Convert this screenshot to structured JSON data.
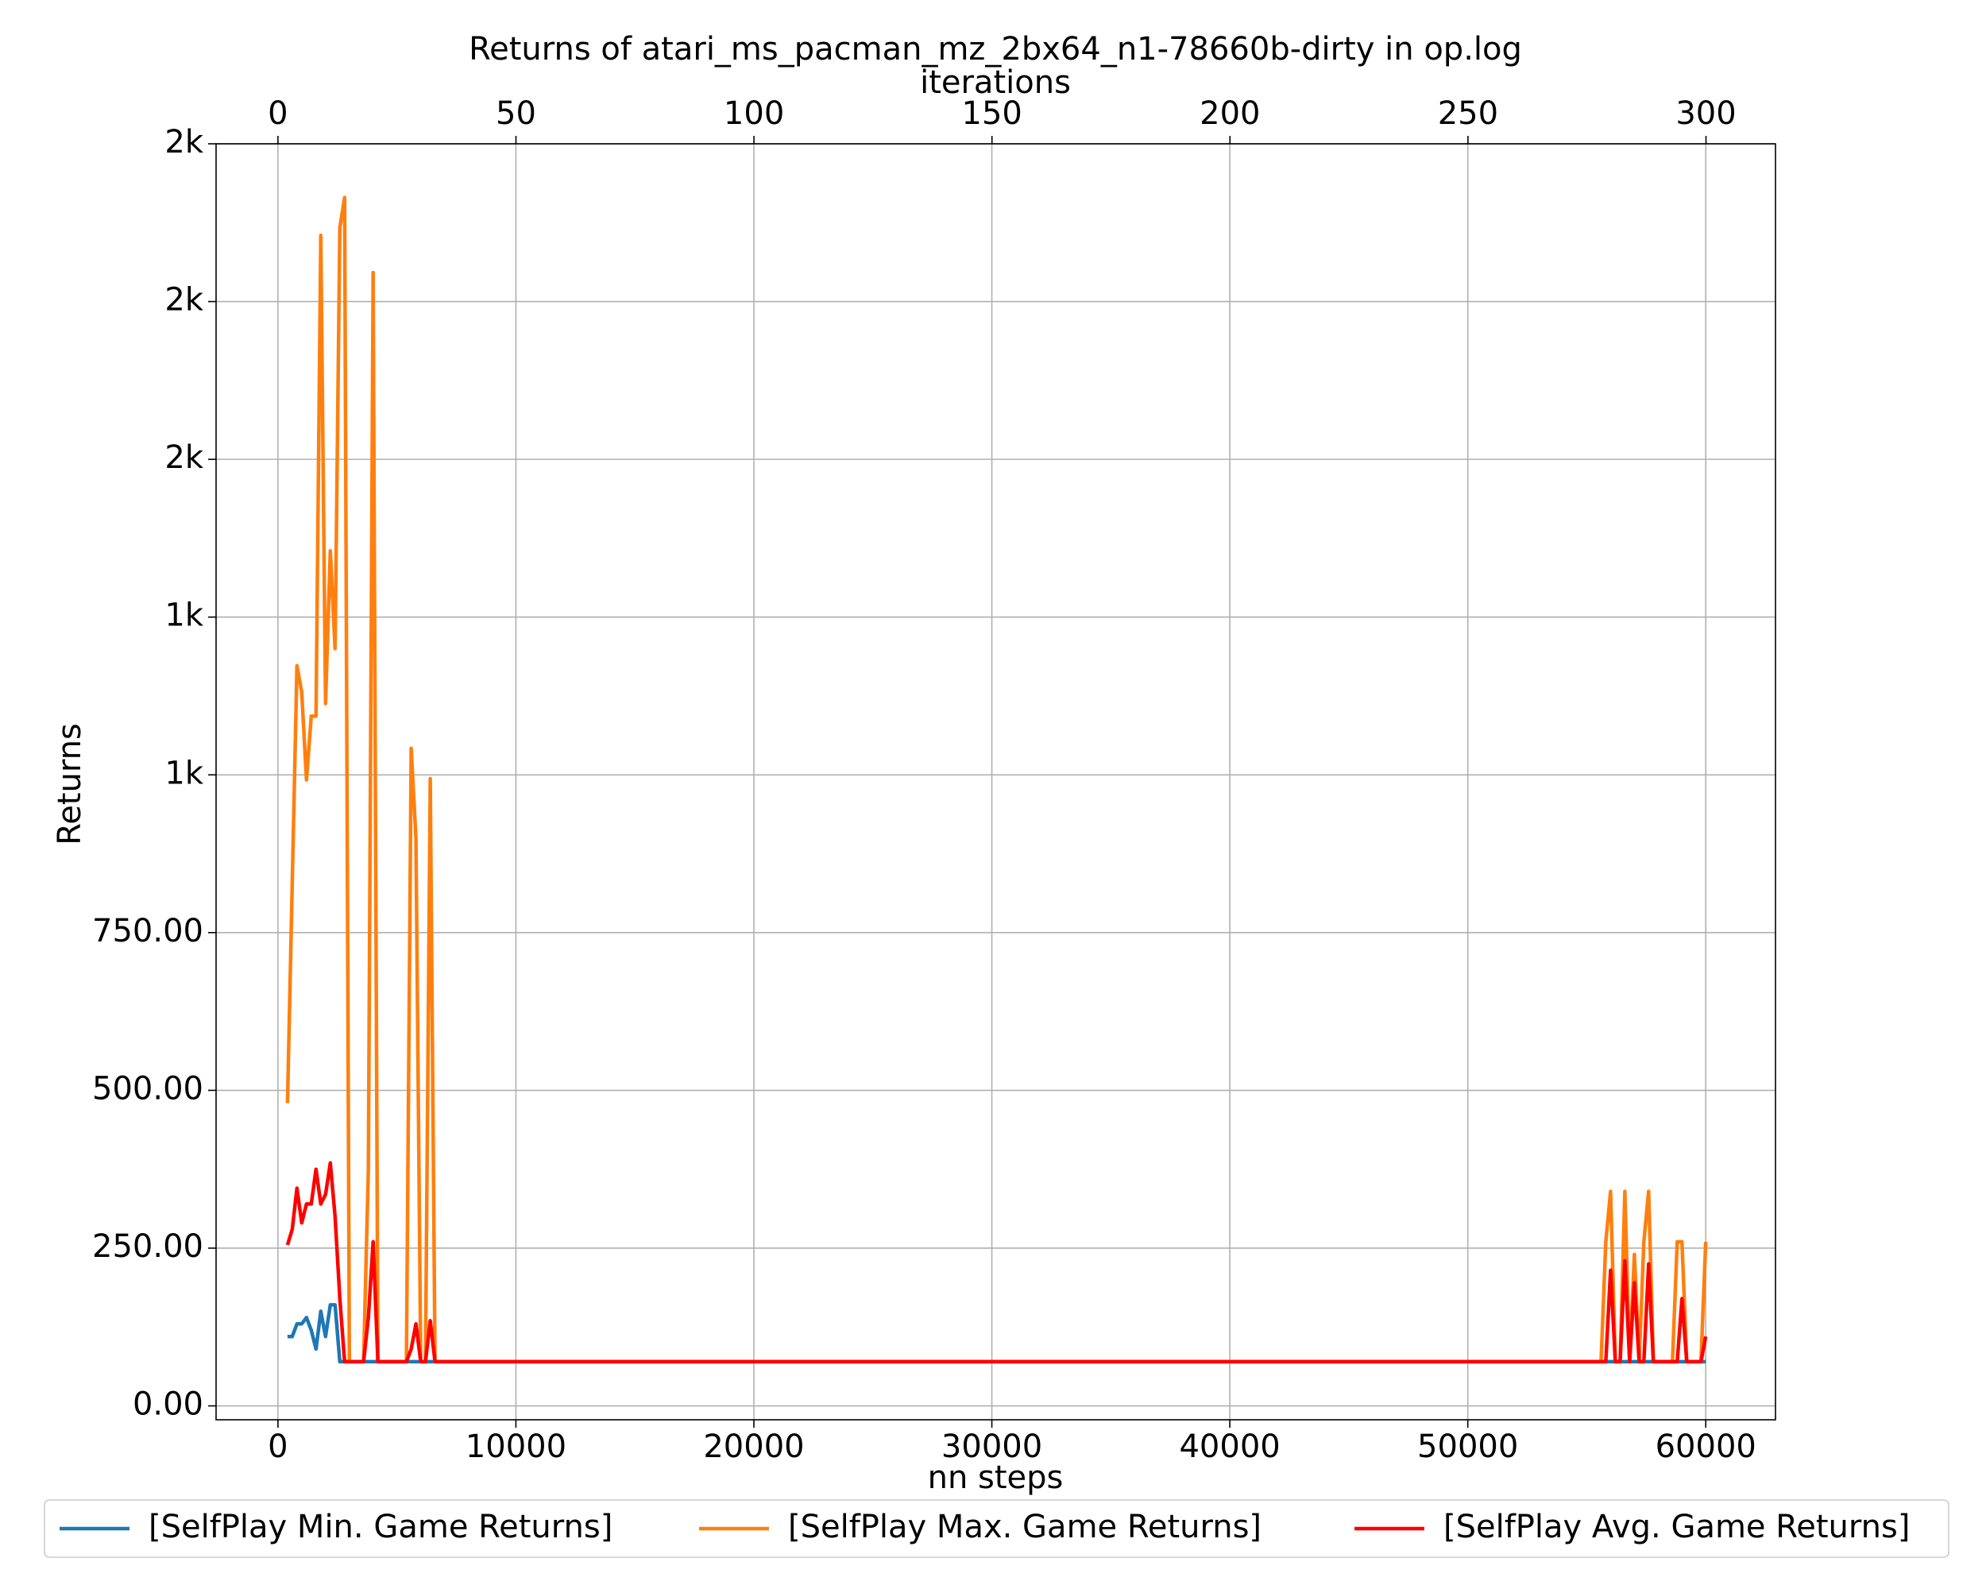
{
  "chart_data": {
    "type": "line",
    "title": "Returns of atari_ms_pacman_mz_2bx64_n1-78660b-dirty in op.log",
    "x_label": "nn steps",
    "x2_label": "iterations",
    "y_label": "Returns",
    "x": [
      400,
      600,
      800,
      1000,
      1200,
      1400,
      1600,
      1800,
      2000,
      2200,
      2400,
      2600,
      2800,
      3000,
      3600,
      3800,
      4000,
      4200,
      5400,
      5600,
      5800,
      6000,
      6200,
      6400,
      6600,
      55600,
      55800,
      56000,
      56200,
      56400,
      56600,
      56800,
      57000,
      57200,
      57400,
      57600,
      57800,
      58600,
      58800,
      59000,
      59200,
      59800,
      60000
    ],
    "series": [
      {
        "name": "[SelfPlay Min. Game Returns]",
        "color": "#1f77b4",
        "values": [
          110,
          110,
          130,
          130,
          140,
          120,
          90,
          150,
          110,
          160,
          160,
          70,
          70,
          70,
          70,
          70,
          70,
          70,
          70,
          70,
          70,
          70,
          70,
          70,
          70,
          70,
          70,
          70,
          70,
          70,
          70,
          70,
          70,
          70,
          70,
          70,
          70,
          70,
          70,
          70,
          70,
          70,
          70
        ]
      },
      {
        "name": "[SelfPlay Max. Game Returns]",
        "color": "#ff7f0e",
        "values": [
          480,
          830,
          1173,
          1131,
          992,
          1093,
          1093,
          1855,
          1113,
          1355,
          1200,
          1867,
          1915,
          70,
          70,
          375,
          1796,
          70,
          70,
          1042,
          899,
          70,
          70,
          994,
          70,
          70,
          260,
          340,
          70,
          70,
          340,
          70,
          240,
          70,
          260,
          340,
          70,
          70,
          260,
          260,
          70,
          70,
          260
        ]
      },
      {
        "name": "[SelfPlay Avg. Game Returns]",
        "color": "#ff0000",
        "values": [
          255,
          280,
          345,
          290,
          320,
          320,
          375,
          320,
          335,
          385,
          300,
          170,
          70,
          70,
          70,
          140,
          260,
          70,
          70,
          90,
          130,
          70,
          70,
          135,
          70,
          70,
          70,
          215,
          70,
          70,
          230,
          70,
          195,
          70,
          70,
          225,
          70,
          70,
          70,
          170,
          70,
          70,
          110
        ]
      }
    ],
    "xlim": [
      -2600,
      62930
    ],
    "xticks": [
      0,
      10000,
      20000,
      30000,
      40000,
      50000,
      60000
    ],
    "x2lim": [
      -13,
      314.6
    ],
    "x2ticks": [
      0,
      50,
      100,
      150,
      200,
      250,
      300
    ],
    "ylim": [
      -22,
      2000
    ],
    "yticks": [
      {
        "value": 0,
        "label": "0.00"
      },
      {
        "value": 250,
        "label": "250.00"
      },
      {
        "value": 500,
        "label": "500.00"
      },
      {
        "value": 750,
        "label": "750.00"
      },
      {
        "value": 1000,
        "label": "1k"
      },
      {
        "value": 1250,
        "label": "1k"
      },
      {
        "value": 1500,
        "label": "2k"
      },
      {
        "value": 1750,
        "label": "2k"
      },
      {
        "value": 2000,
        "label": "2k"
      }
    ],
    "grid": true,
    "legend": "bottom"
  }
}
